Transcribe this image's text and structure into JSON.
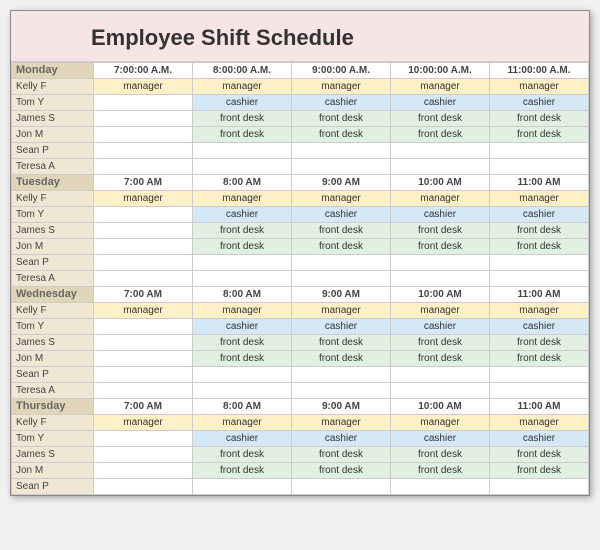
{
  "title": "Employee Shift Schedule",
  "columns_count": 5,
  "days": [
    {
      "name": "Monday",
      "times": [
        "7:00:00 A.M.",
        "8:00:00 A.M.",
        "9:00:00 A.M.",
        "10:00:00 A.M.",
        "11:00:00 A.M."
      ],
      "rows": [
        {
          "name": "Kelly F",
          "cells": [
            {
              "t": "manager",
              "r": "manager"
            },
            {
              "t": "manager",
              "r": "manager"
            },
            {
              "t": "manager",
              "r": "manager"
            },
            {
              "t": "manager",
              "r": "manager"
            },
            {
              "t": "manager",
              "r": "manager"
            }
          ]
        },
        {
          "name": "Tom Y",
          "cells": [
            {
              "t": "",
              "r": ""
            },
            {
              "t": "cashier",
              "r": "cashier"
            },
            {
              "t": "cashier",
              "r": "cashier"
            },
            {
              "t": "cashier",
              "r": "cashier"
            },
            {
              "t": "cashier",
              "r": "cashier"
            }
          ]
        },
        {
          "name": "James S",
          "cells": [
            {
              "t": "",
              "r": ""
            },
            {
              "t": "front desk",
              "r": "frontdesk"
            },
            {
              "t": "front desk",
              "r": "frontdesk"
            },
            {
              "t": "front desk",
              "r": "frontdesk"
            },
            {
              "t": "front desk",
              "r": "frontdesk"
            }
          ]
        },
        {
          "name": "Jon M",
          "cells": [
            {
              "t": "",
              "r": ""
            },
            {
              "t": "front desk",
              "r": "frontdesk"
            },
            {
              "t": "front desk",
              "r": "frontdesk"
            },
            {
              "t": "front desk",
              "r": "frontdesk"
            },
            {
              "t": "front desk",
              "r": "frontdesk"
            }
          ]
        },
        {
          "name": "Sean P",
          "cells": [
            {
              "t": "",
              "r": ""
            },
            {
              "t": "",
              "r": ""
            },
            {
              "t": "",
              "r": ""
            },
            {
              "t": "",
              "r": ""
            },
            {
              "t": "",
              "r": ""
            }
          ]
        },
        {
          "name": "Teresa A",
          "cells": [
            {
              "t": "",
              "r": ""
            },
            {
              "t": "",
              "r": ""
            },
            {
              "t": "",
              "r": ""
            },
            {
              "t": "",
              "r": ""
            },
            {
              "t": "",
              "r": ""
            }
          ]
        }
      ]
    },
    {
      "name": "Tuesday",
      "times": [
        "7:00 AM",
        "8:00 AM",
        "9:00 AM",
        "10:00 AM",
        "11:00 AM"
      ],
      "rows": [
        {
          "name": "Kelly F",
          "cells": [
            {
              "t": "manager",
              "r": "manager"
            },
            {
              "t": "manager",
              "r": "manager"
            },
            {
              "t": "manager",
              "r": "manager"
            },
            {
              "t": "manager",
              "r": "manager"
            },
            {
              "t": "manager",
              "r": "manager"
            }
          ]
        },
        {
          "name": "Tom Y",
          "cells": [
            {
              "t": "",
              "r": ""
            },
            {
              "t": "cashier",
              "r": "cashier"
            },
            {
              "t": "cashier",
              "r": "cashier"
            },
            {
              "t": "cashier",
              "r": "cashier"
            },
            {
              "t": "cashier",
              "r": "cashier"
            }
          ]
        },
        {
          "name": "James S",
          "cells": [
            {
              "t": "",
              "r": ""
            },
            {
              "t": "front desk",
              "r": "frontdesk"
            },
            {
              "t": "front desk",
              "r": "frontdesk"
            },
            {
              "t": "front desk",
              "r": "frontdesk"
            },
            {
              "t": "front desk",
              "r": "frontdesk"
            }
          ]
        },
        {
          "name": "Jon M",
          "cells": [
            {
              "t": "",
              "r": ""
            },
            {
              "t": "front desk",
              "r": "frontdesk"
            },
            {
              "t": "front desk",
              "r": "frontdesk"
            },
            {
              "t": "front desk",
              "r": "frontdesk"
            },
            {
              "t": "front desk",
              "r": "frontdesk"
            }
          ]
        },
        {
          "name": "Sean P",
          "cells": [
            {
              "t": "",
              "r": ""
            },
            {
              "t": "",
              "r": ""
            },
            {
              "t": "",
              "r": ""
            },
            {
              "t": "",
              "r": ""
            },
            {
              "t": "",
              "r": ""
            }
          ]
        },
        {
          "name": "Teresa A",
          "cells": [
            {
              "t": "",
              "r": ""
            },
            {
              "t": "",
              "r": ""
            },
            {
              "t": "",
              "r": ""
            },
            {
              "t": "",
              "r": ""
            },
            {
              "t": "",
              "r": ""
            }
          ]
        }
      ]
    },
    {
      "name": "Wednesday",
      "times": [
        "7:00 AM",
        "8:00 AM",
        "9:00 AM",
        "10:00 AM",
        "11:00 AM"
      ],
      "rows": [
        {
          "name": "Kelly F",
          "cells": [
            {
              "t": "manager",
              "r": "manager"
            },
            {
              "t": "manager",
              "r": "manager"
            },
            {
              "t": "manager",
              "r": "manager"
            },
            {
              "t": "manager",
              "r": "manager"
            },
            {
              "t": "manager",
              "r": "manager"
            }
          ]
        },
        {
          "name": "Tom Y",
          "cells": [
            {
              "t": "",
              "r": ""
            },
            {
              "t": "cashier",
              "r": "cashier"
            },
            {
              "t": "cashier",
              "r": "cashier"
            },
            {
              "t": "cashier",
              "r": "cashier"
            },
            {
              "t": "cashier",
              "r": "cashier"
            }
          ]
        },
        {
          "name": "James S",
          "cells": [
            {
              "t": "",
              "r": ""
            },
            {
              "t": "front desk",
              "r": "frontdesk"
            },
            {
              "t": "front desk",
              "r": "frontdesk"
            },
            {
              "t": "front desk",
              "r": "frontdesk"
            },
            {
              "t": "front desk",
              "r": "frontdesk"
            }
          ]
        },
        {
          "name": "Jon M",
          "cells": [
            {
              "t": "",
              "r": ""
            },
            {
              "t": "front desk",
              "r": "frontdesk"
            },
            {
              "t": "front desk",
              "r": "frontdesk"
            },
            {
              "t": "front desk",
              "r": "frontdesk"
            },
            {
              "t": "front desk",
              "r": "frontdesk"
            }
          ]
        },
        {
          "name": "Sean P",
          "cells": [
            {
              "t": "",
              "r": ""
            },
            {
              "t": "",
              "r": ""
            },
            {
              "t": "",
              "r": ""
            },
            {
              "t": "",
              "r": ""
            },
            {
              "t": "",
              "r": ""
            }
          ]
        },
        {
          "name": "Teresa A",
          "cells": [
            {
              "t": "",
              "r": ""
            },
            {
              "t": "",
              "r": ""
            },
            {
              "t": "",
              "r": ""
            },
            {
              "t": "",
              "r": ""
            },
            {
              "t": "",
              "r": ""
            }
          ]
        }
      ]
    },
    {
      "name": "Thursday",
      "times": [
        "7:00 AM",
        "8:00 AM",
        "9:00 AM",
        "10:00 AM",
        "11:00 AM"
      ],
      "rows": [
        {
          "name": "Kelly F",
          "cells": [
            {
              "t": "manager",
              "r": "manager"
            },
            {
              "t": "manager",
              "r": "manager"
            },
            {
              "t": "manager",
              "r": "manager"
            },
            {
              "t": "manager",
              "r": "manager"
            },
            {
              "t": "manager",
              "r": "manager"
            }
          ]
        },
        {
          "name": "Tom Y",
          "cells": [
            {
              "t": "",
              "r": ""
            },
            {
              "t": "cashier",
              "r": "cashier"
            },
            {
              "t": "cashier",
              "r": "cashier"
            },
            {
              "t": "cashier",
              "r": "cashier"
            },
            {
              "t": "cashier",
              "r": "cashier"
            }
          ]
        },
        {
          "name": "James S",
          "cells": [
            {
              "t": "",
              "r": ""
            },
            {
              "t": "front desk",
              "r": "frontdesk"
            },
            {
              "t": "front desk",
              "r": "frontdesk"
            },
            {
              "t": "front desk",
              "r": "frontdesk"
            },
            {
              "t": "front desk",
              "r": "frontdesk"
            }
          ]
        },
        {
          "name": "Jon M",
          "cells": [
            {
              "t": "",
              "r": ""
            },
            {
              "t": "front desk",
              "r": "frontdesk"
            },
            {
              "t": "front desk",
              "r": "frontdesk"
            },
            {
              "t": "front desk",
              "r": "frontdesk"
            },
            {
              "t": "front desk",
              "r": "frontdesk"
            }
          ]
        },
        {
          "name": "Sean P",
          "cells": [
            {
              "t": "",
              "r": ""
            },
            {
              "t": "",
              "r": ""
            },
            {
              "t": "",
              "r": ""
            },
            {
              "t": "",
              "r": ""
            },
            {
              "t": "",
              "r": ""
            }
          ]
        }
      ]
    }
  ],
  "colors": {
    "title_bg": "#f7e4e4",
    "day_bg": "#e0d5b8",
    "name_bg": "#efe7d4",
    "manager": "#fff0c8",
    "cashier": "#d4e8f7",
    "frontdesk": "#e2f0e2",
    "border": "#cccccc"
  }
}
